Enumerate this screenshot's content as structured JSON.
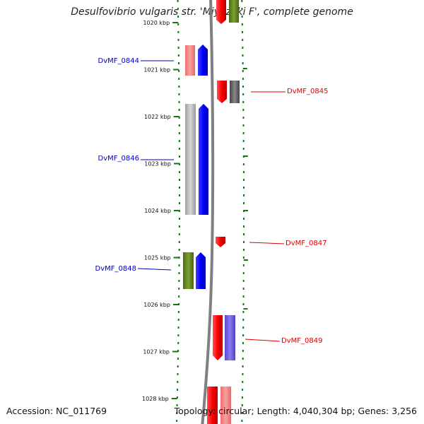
{
  "title": "Desulfovibrio vulgaris str. 'Miyazaki F', complete genome",
  "footer": {
    "accession": "Accession: NC_011769",
    "topology": "Topology: circular; Length: 4,040,304 bp; Genes: 3,256"
  },
  "ticks": [
    {
      "label": "1020 kbp",
      "kbp": 1020
    },
    {
      "label": "1021 kbp",
      "kbp": 1021
    },
    {
      "label": "1022 kbp",
      "kbp": 1022
    },
    {
      "label": "1023 kbp",
      "kbp": 1023
    },
    {
      "label": "1024 kbp",
      "kbp": 1024
    },
    {
      "label": "1025 kbp",
      "kbp": 1025
    },
    {
      "label": "1026 kbp",
      "kbp": 1026
    },
    {
      "label": "1027 kbp",
      "kbp": 1027
    },
    {
      "label": "1028 kbp",
      "kbp": 1028
    }
  ],
  "gene_labels": [
    {
      "name": "DvMF_0844",
      "strand": "forward",
      "color": "#0000bb"
    },
    {
      "name": "DvMF_0845",
      "strand": "reverse",
      "color": "#dd0000"
    },
    {
      "name": "DvMF_0846",
      "strand": "forward",
      "color": "#0000bb"
    },
    {
      "name": "DvMF_0847",
      "strand": "reverse",
      "color": "#dd0000"
    },
    {
      "name": "DvMF_0848",
      "strand": "forward",
      "color": "#0000bb"
    },
    {
      "name": "DvMF_0849",
      "strand": "reverse",
      "color": "#dd0000"
    }
  ],
  "colors": {
    "forward_cds": "#0000ff",
    "reverse_cds": "#ff0000",
    "tick": "#117711",
    "backbone": "#808080"
  }
}
